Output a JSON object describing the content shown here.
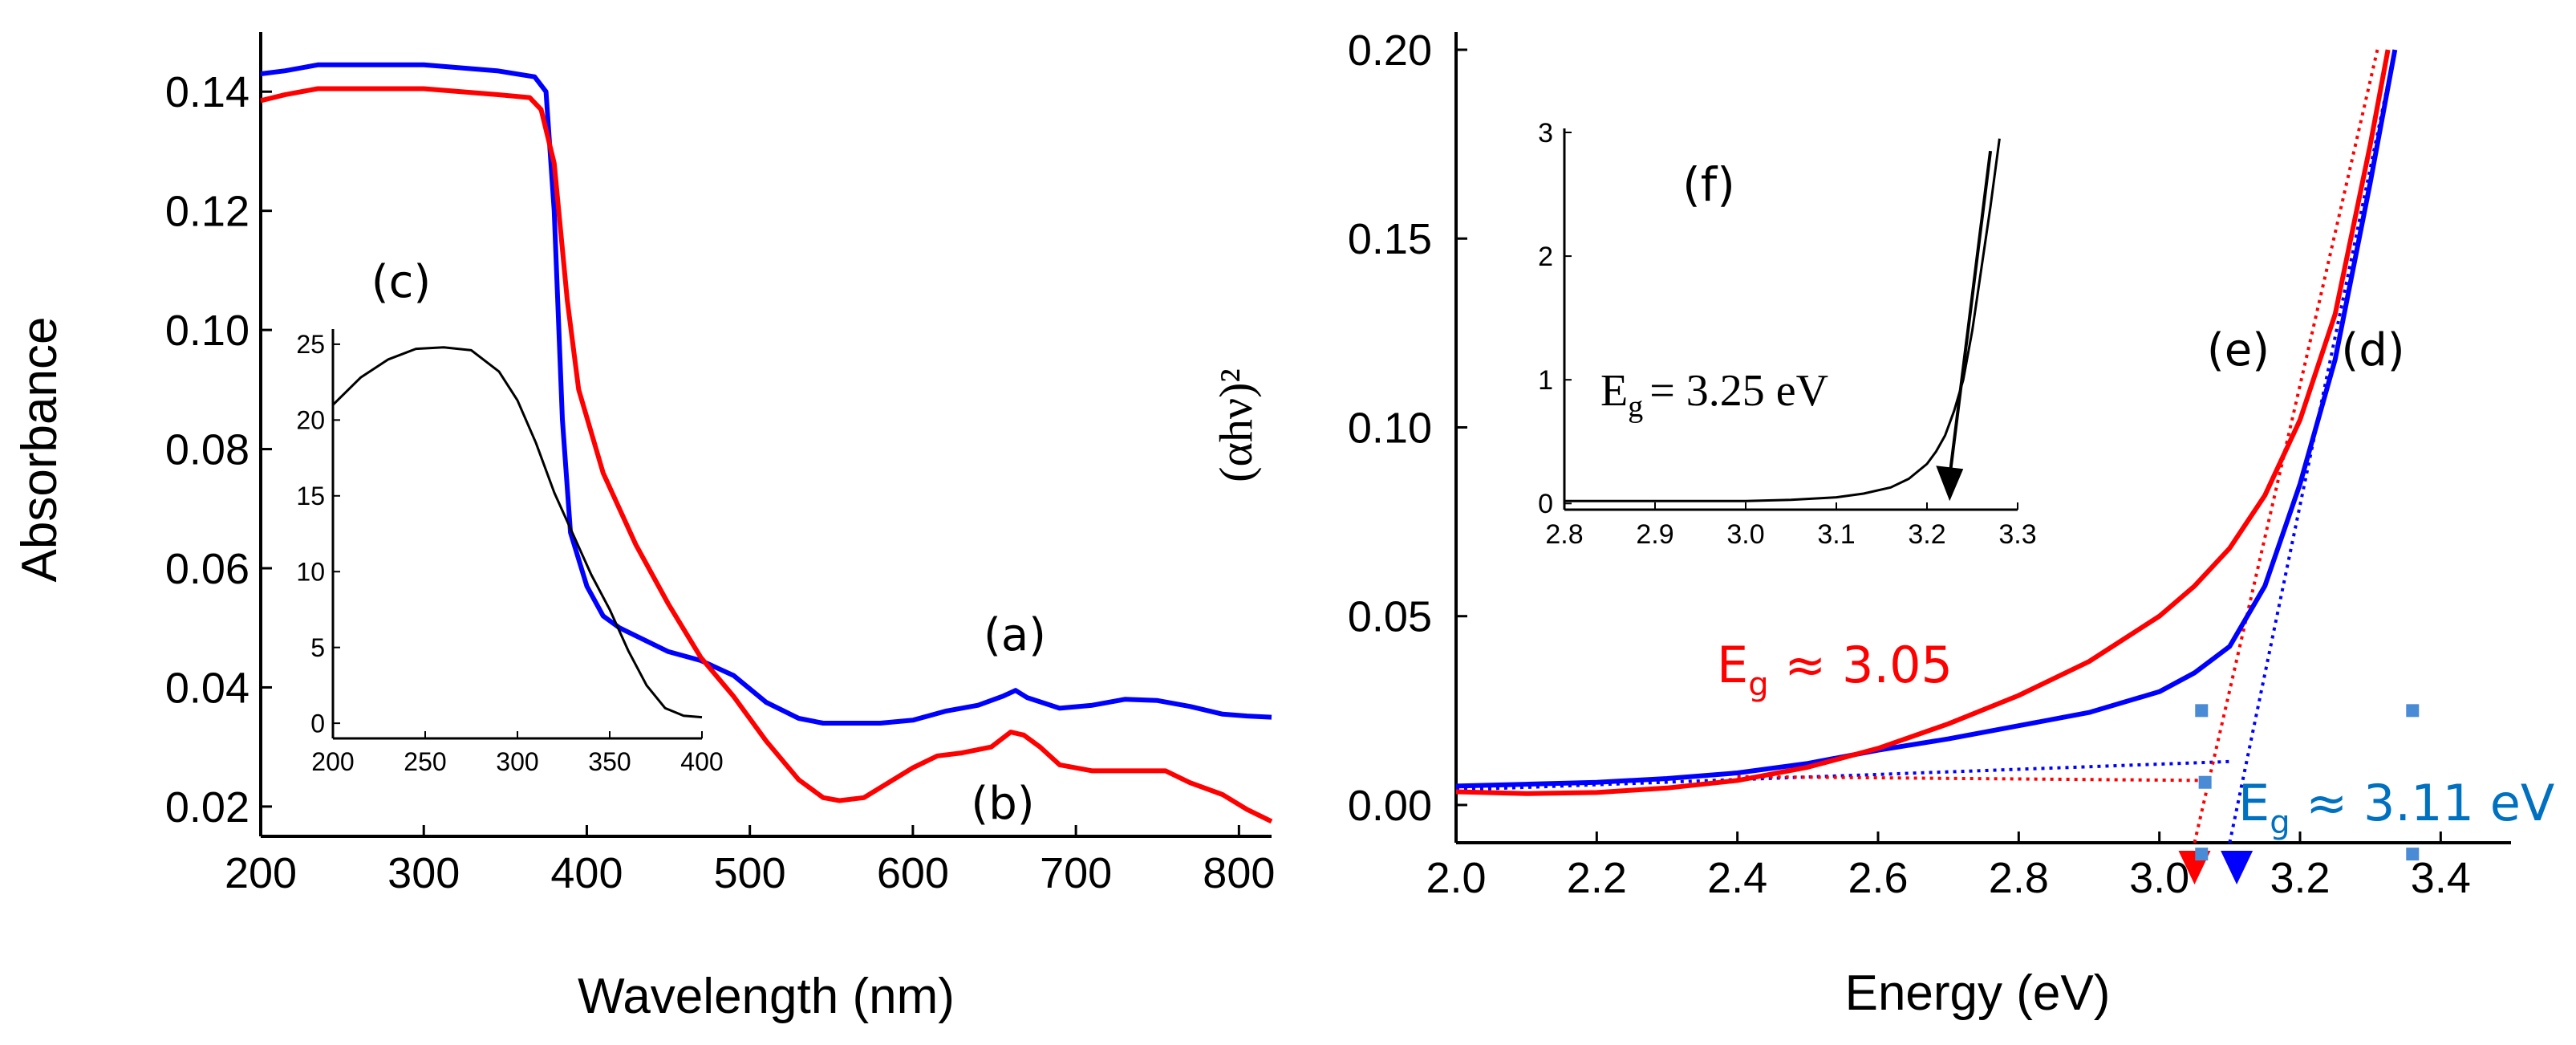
{
  "chart_data": [
    {
      "id": "left",
      "type": "line",
      "title": "",
      "xlabel": "Wavelength (nm)",
      "ylabel": "Absorbance",
      "xlim": [
        200,
        820
      ],
      "ylim": [
        0.015,
        0.15
      ],
      "xticks": [
        200,
        300,
        400,
        500,
        600,
        700,
        800
      ],
      "xtick_labels": [
        "200",
        "300",
        "400",
        "500",
        "600",
        "700",
        "800"
      ],
      "yticks": [
        0.02,
        0.04,
        0.06,
        0.08,
        0.1,
        0.12,
        0.14
      ],
      "ytick_labels": [
        "0.02",
        "0.04",
        "0.06",
        "0.08",
        "0.10",
        "0.12",
        "0.14"
      ],
      "series": [
        {
          "name": "(a)",
          "color": "#0000ff",
          "x": [
            200,
            215,
            235,
            300,
            345,
            368,
            375,
            380,
            385,
            390,
            400,
            410,
            420,
            435,
            450,
            470,
            490,
            510,
            530,
            545,
            560,
            580,
            600,
            620,
            640,
            655,
            663,
            670,
            690,
            710,
            730,
            750,
            770,
            790,
            805,
            820
          ],
          "y": [
            0.143,
            0.1435,
            0.1445,
            0.1445,
            0.1435,
            0.1425,
            0.14,
            0.12,
            0.085,
            0.066,
            0.057,
            0.052,
            0.05,
            0.048,
            0.046,
            0.0445,
            0.042,
            0.0375,
            0.0348,
            0.034,
            0.034,
            0.034,
            0.0345,
            0.036,
            0.037,
            0.0385,
            0.0395,
            0.0383,
            0.0365,
            0.037,
            0.038,
            0.0378,
            0.0368,
            0.0355,
            0.0352,
            0.035
          ]
        },
        {
          "name": "(b)",
          "color": "#ff0000",
          "x": [
            200,
            215,
            235,
            300,
            345,
            365,
            372,
            380,
            388,
            395,
            410,
            430,
            450,
            470,
            490,
            510,
            530,
            545,
            555,
            570,
            585,
            600,
            615,
            630,
            648,
            660,
            668,
            678,
            690,
            710,
            730,
            755,
            770,
            790,
            805,
            820
          ],
          "y": [
            0.1385,
            0.1395,
            0.1405,
            0.1405,
            0.1395,
            0.139,
            0.137,
            0.128,
            0.105,
            0.09,
            0.076,
            0.064,
            0.054,
            0.045,
            0.0385,
            0.031,
            0.0245,
            0.0215,
            0.021,
            0.0215,
            0.024,
            0.0265,
            0.0285,
            0.029,
            0.03,
            0.0325,
            0.032,
            0.03,
            0.027,
            0.026,
            0.026,
            0.026,
            0.024,
            0.022,
            0.0195,
            0.0175
          ]
        }
      ],
      "annotations": [
        "(a)",
        "(b)"
      ]
    },
    {
      "id": "left-inset",
      "type": "line",
      "title": "(c)",
      "xlim": [
        200,
        400
      ],
      "ylim": [
        -1,
        26
      ],
      "xticks": [
        200,
        250,
        300,
        350,
        400
      ],
      "xtick_labels": [
        "200",
        "250",
        "300",
        "350",
        "400"
      ],
      "yticks": [
        0,
        5,
        10,
        15,
        20,
        25
      ],
      "ytick_labels": [
        "0",
        "5",
        "10",
        "15",
        "20",
        "25"
      ],
      "series": [
        {
          "name": "(c)",
          "color": "#000000",
          "x": [
            200,
            215,
            230,
            245,
            260,
            275,
            290,
            300,
            310,
            320,
            330,
            340,
            350,
            360,
            370,
            380,
            390,
            400
          ],
          "y": [
            21,
            22.8,
            24,
            24.7,
            24.8,
            24.6,
            23.2,
            21.3,
            18.5,
            15.2,
            12.5,
            9.8,
            7.5,
            4.8,
            2.5,
            1.0,
            0.5,
            0.4
          ]
        }
      ]
    },
    {
      "id": "right",
      "type": "line",
      "title": "",
      "xlabel": "Energy (eV)",
      "ylabel": "(αhν)²",
      "xlim": [
        2.0,
        3.5
      ],
      "ylim": [
        -0.01,
        0.2
      ],
      "xticks": [
        2.0,
        2.2,
        2.4,
        2.6,
        2.8,
        3.0,
        3.2,
        3.4
      ],
      "xtick_labels": [
        "2.0",
        "2.2",
        "2.4",
        "2.6",
        "2.8",
        "3.0",
        "3.2",
        "3.4"
      ],
      "yticks": [
        0.0,
        0.05,
        0.1,
        0.15,
        0.2
      ],
      "ytick_labels": [
        "0.00",
        "0.05",
        "0.10",
        "0.15",
        "0.20"
      ],
      "series": [
        {
          "name": "(d)",
          "color": "#0000ff",
          "x": [
            2.0,
            2.1,
            2.2,
            2.3,
            2.4,
            2.5,
            2.6,
            2.7,
            2.8,
            2.9,
            3.0,
            3.05,
            3.1,
            3.15,
            3.2,
            3.25,
            3.3,
            3.335
          ],
          "y": [
            0.005,
            0.0055,
            0.006,
            0.007,
            0.0085,
            0.011,
            0.0145,
            0.0175,
            0.021,
            0.0245,
            0.03,
            0.035,
            0.042,
            0.058,
            0.085,
            0.118,
            0.165,
            0.2
          ]
        },
        {
          "name": "(e)",
          "color": "#ff0000",
          "x": [
            2.0,
            2.1,
            2.2,
            2.3,
            2.4,
            2.5,
            2.6,
            2.7,
            2.8,
            2.9,
            3.0,
            3.05,
            3.1,
            3.15,
            3.2,
            3.25,
            3.3,
            3.325
          ],
          "y": [
            0.0035,
            0.003,
            0.0033,
            0.0045,
            0.0065,
            0.01,
            0.015,
            0.0215,
            0.029,
            0.038,
            0.05,
            0.058,
            0.068,
            0.082,
            0.102,
            0.13,
            0.175,
            0.2
          ]
        }
      ],
      "tangents": [
        {
          "color": "#0000ff",
          "from": [
            2.0,
            0.004
          ],
          "to": [
            3.1,
            0.0115
          ]
        },
        {
          "color": "#0000ff",
          "from": [
            3.1,
            -0.01
          ],
          "to": [
            3.335,
            0.2
          ]
        },
        {
          "color": "#ff0000",
          "from": [
            2.4,
            0.0075
          ],
          "to": [
            3.06,
            0.0065
          ]
        },
        {
          "color": "#ff0000",
          "from": [
            3.05,
            -0.01
          ],
          "to": [
            3.31,
            0.2
          ]
        }
      ],
      "markers": [
        {
          "color": "#ff0000",
          "x": 3.05
        },
        {
          "color": "#0000ff",
          "x": 3.11
        }
      ],
      "stray_points": [
        [
          3.06,
          0.025
        ],
        [
          3.065,
          0.006
        ],
        [
          3.06,
          -0.013
        ],
        [
          3.36,
          0.025
        ],
        [
          3.36,
          -0.013
        ]
      ],
      "annotations": {
        "red_eg": {
          "symbol": "E",
          "sub": "g",
          "value": " ≈ 3.05",
          "color": "#ff0000"
        },
        "blue_eg": {
          "symbol": "E",
          "sub": "g",
          "value": " ≈ 3.11 eV",
          "color": "#0070c0"
        },
        "d": "(d)",
        "e": "(e)"
      }
    },
    {
      "id": "right-inset",
      "type": "line",
      "title": "(f)",
      "xlim": [
        2.8,
        3.3
      ],
      "ylim": [
        -0.05,
        3.0
      ],
      "xticks": [
        2.8,
        2.9,
        3.0,
        3.1,
        3.2,
        3.3
      ],
      "xtick_labels": [
        "2.8",
        "2.9",
        "3.0",
        "3.1",
        "3.2",
        "3.3"
      ],
      "yticks": [
        0,
        1,
        2,
        3
      ],
      "ytick_labels": [
        "0",
        "1",
        "2",
        "3"
      ],
      "series": [
        {
          "name": "(f)",
          "color": "#000000",
          "x": [
            2.8,
            2.9,
            3.0,
            3.05,
            3.1,
            3.13,
            3.16,
            3.18,
            3.2,
            3.21,
            3.22,
            3.23,
            3.24,
            3.25,
            3.26,
            3.27,
            3.28
          ],
          "y": [
            0.02,
            0.02,
            0.02,
            0.03,
            0.05,
            0.08,
            0.13,
            0.2,
            0.32,
            0.42,
            0.55,
            0.75,
            1.0,
            1.4,
            1.9,
            2.4,
            2.95
          ]
        }
      ],
      "arrow": {
        "from": [
          3.27,
          2.85
        ],
        "to": [
          3.225,
          0.02
        ]
      },
      "annotation": {
        "symbol": "E",
        "sub": "g",
        "value": "= 3.25 eV"
      }
    }
  ]
}
